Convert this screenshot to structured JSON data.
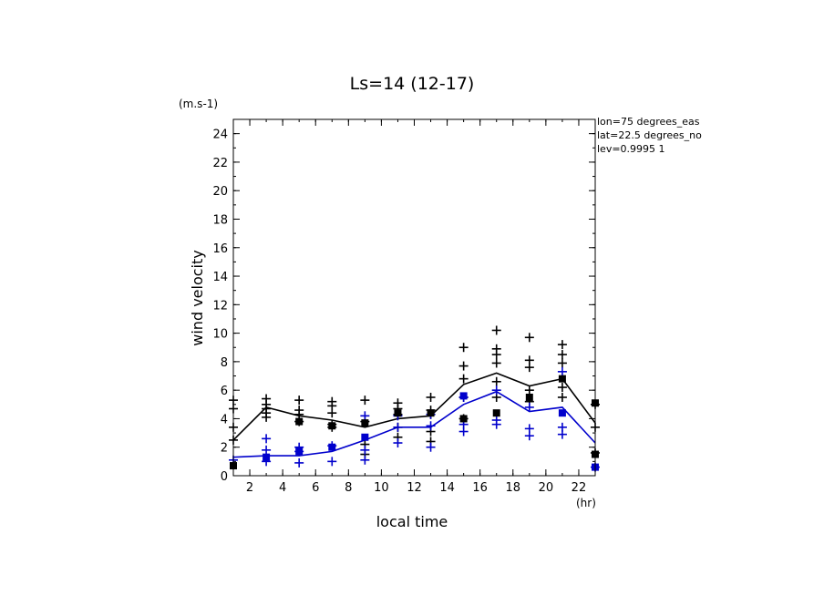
{
  "chart_data": {
    "type": "scatter",
    "title": "Ls=14 (12-17)",
    "xlabel": "local time",
    "ylabel": "wind velocity",
    "x_unit": "(hr)",
    "y_unit": "(m.s-1)",
    "xlim": [
      1,
      23
    ],
    "ylim": [
      0,
      25
    ],
    "x_ticks": [
      2,
      4,
      6,
      8,
      10,
      12,
      14,
      16,
      18,
      20,
      22
    ],
    "y_ticks": [
      0,
      2,
      4,
      6,
      8,
      10,
      12,
      14,
      16,
      18,
      20,
      22,
      24
    ],
    "annotations": [
      "lon=75 degrees_eas",
      "lat=22.5 degrees_no",
      "lev=0.9995 1"
    ],
    "grid": false,
    "colors": {
      "black_series": "#000000",
      "blue_series": "#0000cc"
    },
    "series": [
      {
        "color": "black",
        "kind": "mean line",
        "x": [
          1,
          3,
          5,
          7,
          9,
          11,
          13,
          15,
          17,
          19,
          21,
          23
        ],
        "y": [
          2.5,
          4.8,
          4.2,
          3.9,
          3.4,
          4.0,
          4.2,
          6.4,
          7.2,
          6.3,
          6.8,
          3.7
        ]
      },
      {
        "color": "blue",
        "kind": "mean line",
        "x": [
          1,
          3,
          5,
          7,
          9,
          11,
          13,
          15,
          17,
          19,
          21,
          23
        ],
        "y": [
          1.3,
          1.4,
          1.4,
          1.7,
          2.5,
          3.4,
          3.4,
          5.0,
          5.9,
          4.5,
          4.8,
          2.3
        ]
      },
      {
        "color": "black",
        "kind": "plus markers",
        "x": [
          1,
          1,
          1,
          1,
          3,
          3,
          3,
          3,
          3,
          5,
          5,
          5,
          5,
          7,
          7,
          7,
          7,
          7,
          9,
          9,
          9,
          9,
          11,
          11,
          11,
          11,
          11,
          13,
          13,
          13,
          13,
          13,
          15,
          15,
          15,
          15,
          15,
          17,
          17,
          17,
          17,
          17,
          17,
          19,
          19,
          19,
          19,
          19,
          21,
          21,
          21,
          21,
          21,
          23,
          23,
          23
        ],
        "y": [
          5.3,
          4.7,
          3.4,
          2.5,
          5.4,
          5.0,
          4.7,
          4.4,
          4.1,
          5.3,
          4.6,
          4.3,
          3.8,
          5.2,
          4.9,
          4.4,
          3.6,
          3.4,
          5.3,
          3.8,
          2.2,
          1.5,
          5.1,
          4.7,
          4.3,
          3.4,
          2.7,
          5.5,
          4.6,
          4.3,
          3.1,
          2.4,
          9.0,
          7.7,
          6.8,
          5.5,
          4.0,
          10.2,
          8.9,
          8.5,
          7.9,
          6.6,
          5.5,
          9.7,
          8.1,
          7.6,
          6.0,
          5.2,
          9.2,
          8.5,
          7.9,
          6.2,
          5.5,
          5.0,
          3.4,
          1.6
        ]
      },
      {
        "color": "blue",
        "kind": "plus markers",
        "x": [
          1,
          3,
          3,
          3,
          5,
          5,
          5,
          7,
          7,
          9,
          9,
          9,
          11,
          11,
          11,
          13,
          13,
          13,
          15,
          15,
          15,
          17,
          17,
          17,
          19,
          19,
          19,
          21,
          21,
          21,
          23
        ],
        "y": [
          1.1,
          2.6,
          1.8,
          1.0,
          2.0,
          1.7,
          0.9,
          2.1,
          1.0,
          4.2,
          1.8,
          1.1,
          4.2,
          3.4,
          2.3,
          4.3,
          3.5,
          2.0,
          5.5,
          3.6,
          3.1,
          6.0,
          3.9,
          3.6,
          4.8,
          3.3,
          2.8,
          7.3,
          3.4,
          2.9,
          0.6
        ]
      },
      {
        "color": "black",
        "kind": "square markers",
        "x": [
          1,
          5,
          7,
          9,
          11,
          13,
          15,
          17,
          19,
          21,
          23,
          23
        ],
        "y": [
          0.7,
          3.8,
          3.5,
          3.7,
          4.4,
          4.4,
          4.0,
          4.4,
          5.5,
          6.8,
          5.1,
          1.5
        ]
      },
      {
        "color": "blue",
        "kind": "square markers",
        "x": [
          3,
          5,
          7,
          9,
          15,
          21,
          23
        ],
        "y": [
          1.3,
          1.7,
          2.0,
          2.7,
          5.6,
          4.4,
          0.6
        ]
      }
    ]
  }
}
